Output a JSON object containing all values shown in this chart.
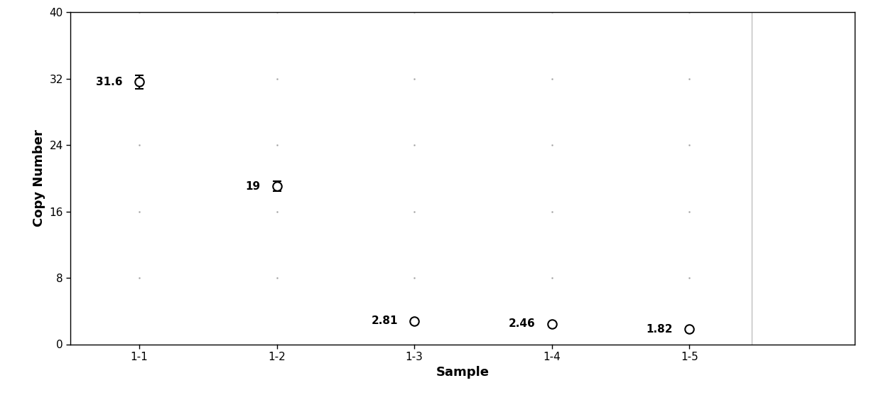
{
  "categories": [
    "1-1",
    "1-2",
    "1-3",
    "1-4",
    "1-5"
  ],
  "values": [
    31.6,
    19.0,
    2.81,
    2.46,
    1.82
  ],
  "errors": [
    0.8,
    0.6,
    0.15,
    0.1,
    0.1
  ],
  "labels": [
    "31.6",
    "19",
    "2.81",
    "2.46",
    "1.82"
  ],
  "xlabel": "Sample",
  "ylabel": "Copy Number",
  "ylim": [
    0,
    40
  ],
  "yticks": [
    0,
    8,
    16,
    24,
    32,
    40
  ],
  "vline_x_index": 4.45,
  "background_color": "#ffffff",
  "marker_color": "black",
  "marker_facecolor": "white",
  "marker_size": 9,
  "marker_linewidth": 1.5,
  "errorbar_linewidth": 1.5,
  "errorbar_capsize": 4,
  "label_fontsize": 11,
  "axis_label_fontsize": 13,
  "tick_fontsize": 11
}
